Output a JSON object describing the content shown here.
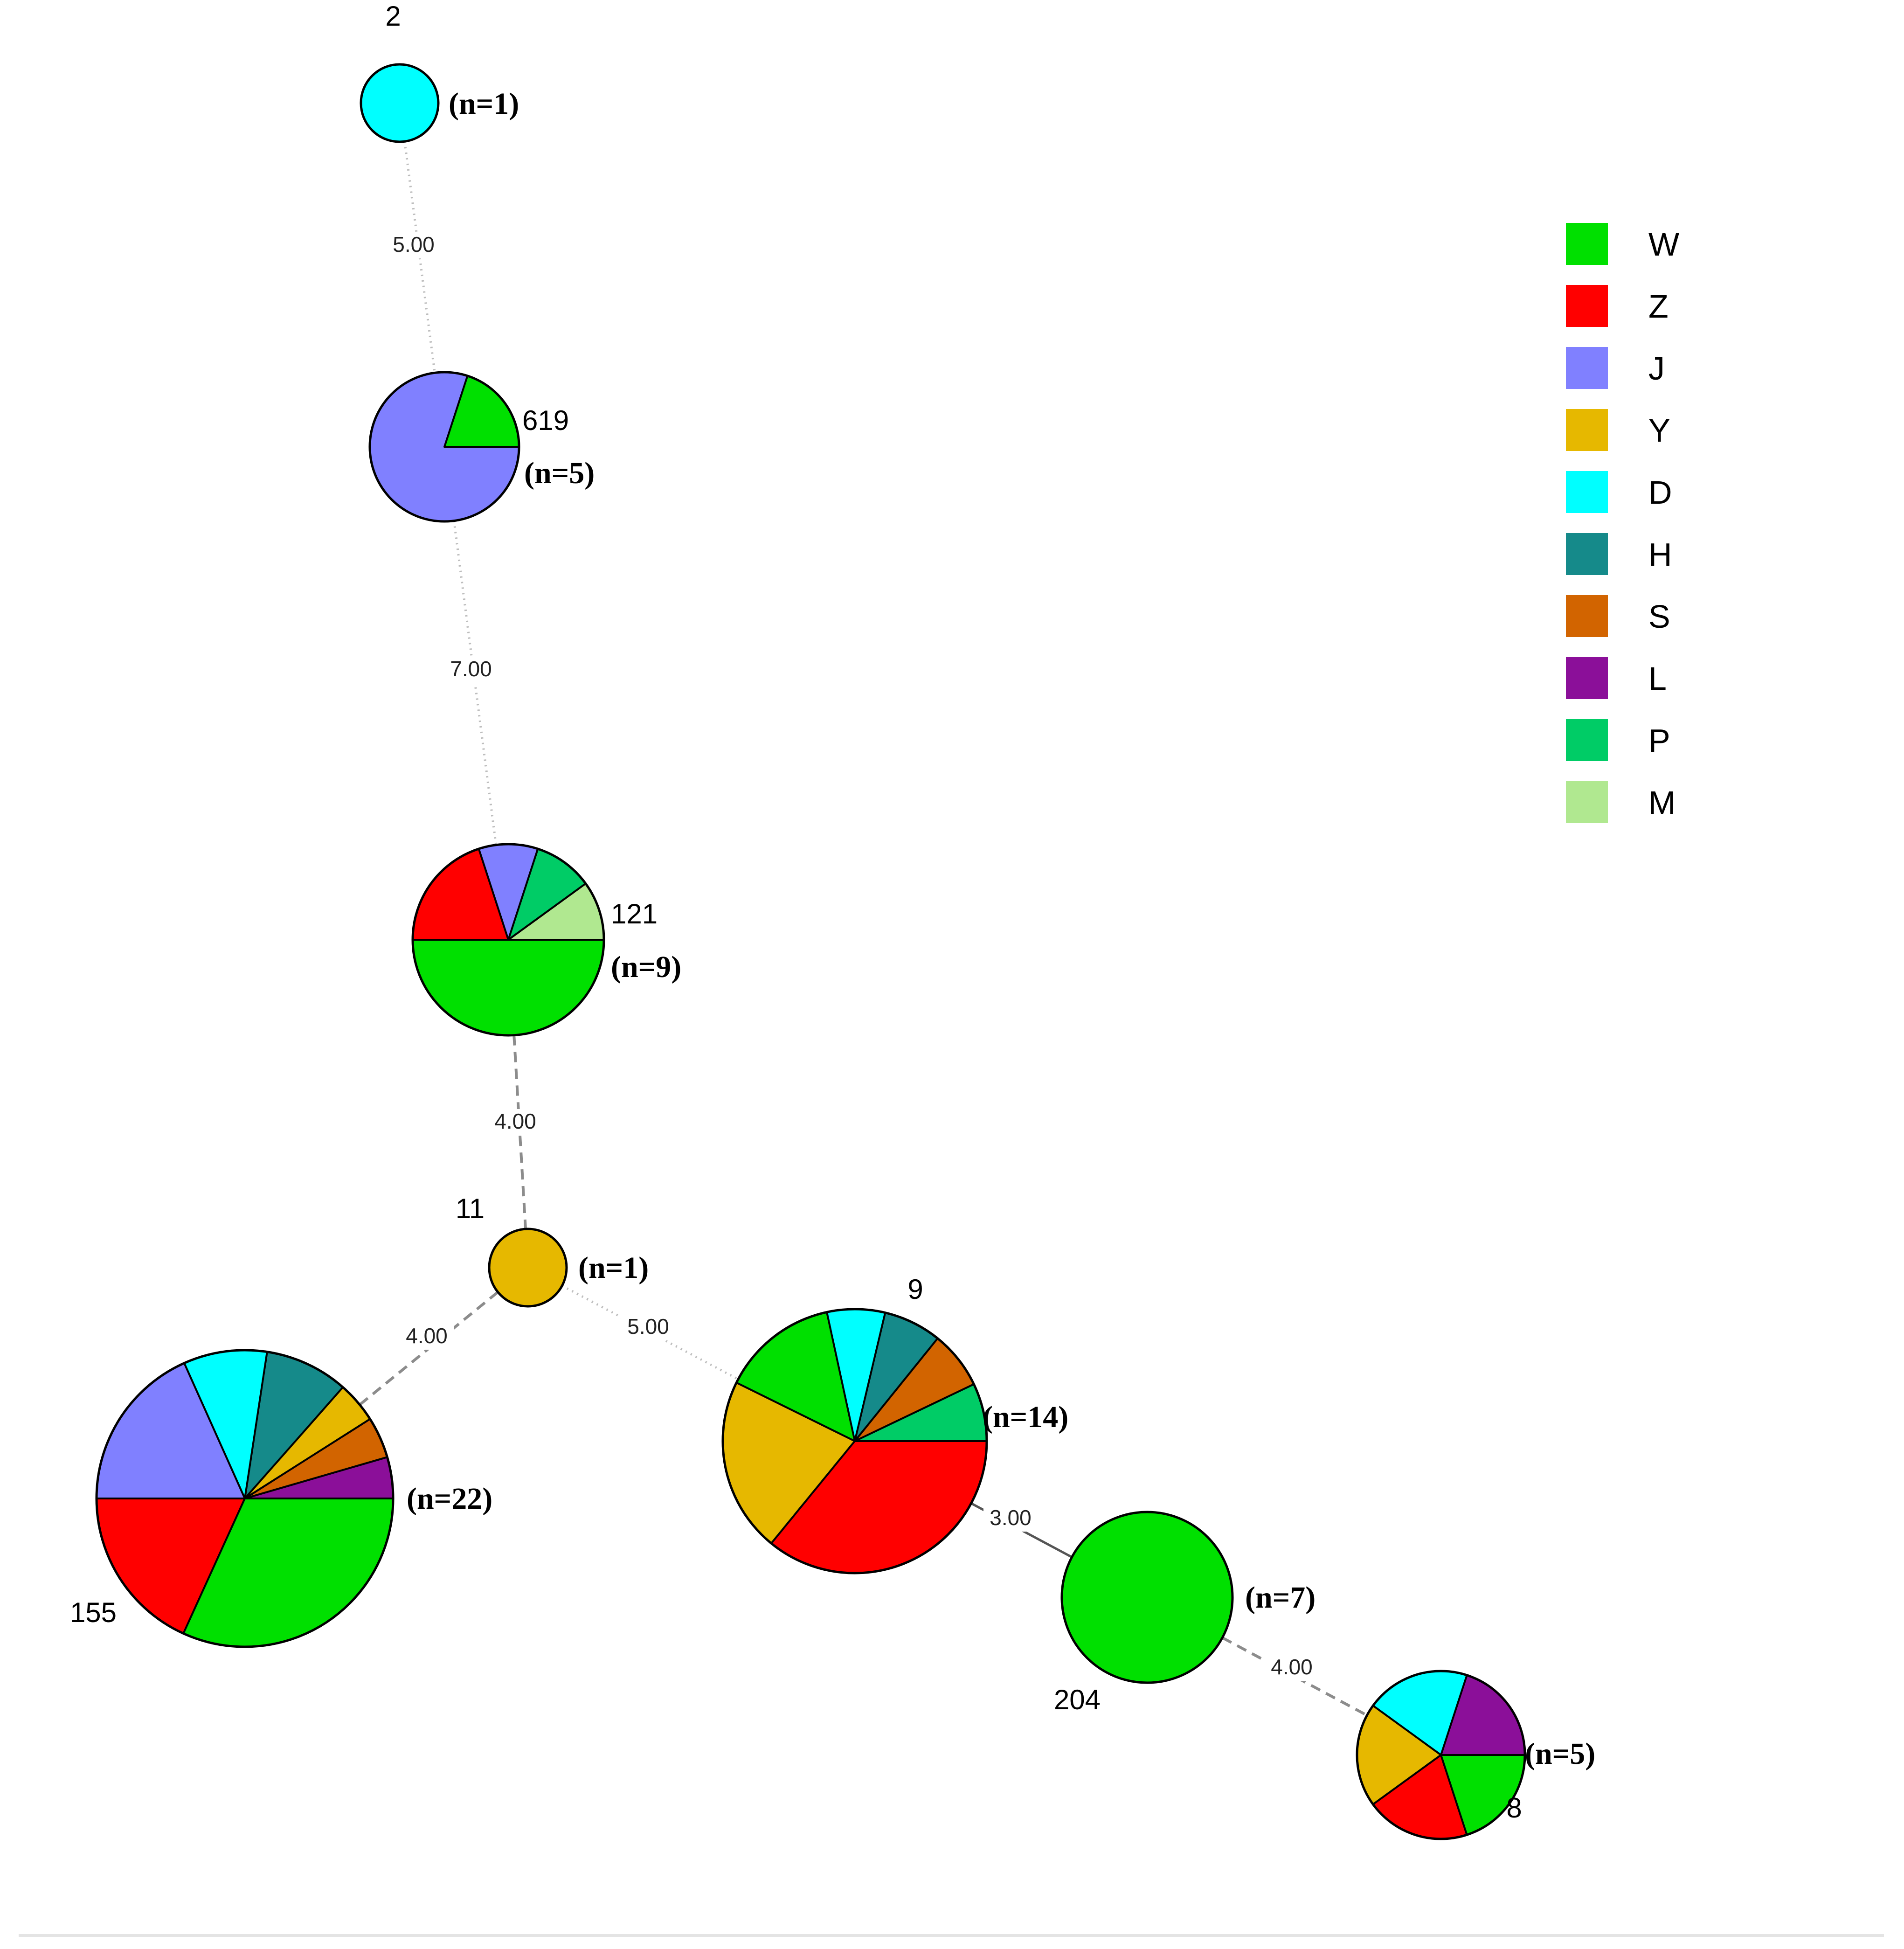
{
  "colors": {
    "W": "#00e000",
    "Z": "#ff0000",
    "J": "#8080ff",
    "Y": "#e6b800",
    "D": "#00ffff",
    "H": "#158a8a",
    "S": "#d26400",
    "L": "#8b0f99",
    "P": "#00cc66",
    "M": "#b0e890"
  },
  "legend": [
    {
      "key": "W",
      "label": "W"
    },
    {
      "key": "Z",
      "label": "Z"
    },
    {
      "key": "J",
      "label": "J"
    },
    {
      "key": "Y",
      "label": "Y"
    },
    {
      "key": "D",
      "label": "D"
    },
    {
      "key": "H",
      "label": "H"
    },
    {
      "key": "S",
      "label": "S"
    },
    {
      "key": "L",
      "label": "L"
    },
    {
      "key": "P",
      "label": "P"
    },
    {
      "key": "M",
      "label": "M"
    }
  ],
  "nodes": [
    {
      "id": "st2",
      "st_label": "2",
      "n_label": "(n=1)",
      "n": 1,
      "composition": [
        {
          "key": "D",
          "share": 1.0
        }
      ]
    },
    {
      "id": "st619",
      "st_label": "619",
      "n_label": "(n=5)",
      "n": 5,
      "composition": [
        {
          "key": "W",
          "share": 0.2
        },
        {
          "key": "J",
          "share": 0.8
        }
      ]
    },
    {
      "id": "st121",
      "st_label": "121",
      "n_label": "(n=9)",
      "n": 9,
      "composition": [
        {
          "key": "M",
          "share": 0.1
        },
        {
          "key": "P",
          "share": 0.1
        },
        {
          "key": "J",
          "share": 0.1
        },
        {
          "key": "Z",
          "share": 0.2
        },
        {
          "key": "W",
          "share": 0.5
        }
      ]
    },
    {
      "id": "st11",
      "st_label": "11",
      "n_label": "(n=1)",
      "n": 1,
      "composition": [
        {
          "key": "Y",
          "share": 1.0
        }
      ]
    },
    {
      "id": "st155",
      "st_label": "155",
      "n_label": "(n=22)",
      "n": 22,
      "composition": [
        {
          "key": "L",
          "share": 0.045
        },
        {
          "key": "S",
          "share": 0.045
        },
        {
          "key": "Y",
          "share": 0.045
        },
        {
          "key": "H",
          "share": 0.091
        },
        {
          "key": "D",
          "share": 0.091
        },
        {
          "key": "J",
          "share": 0.183
        },
        {
          "key": "Z",
          "share": 0.182
        },
        {
          "key": "W",
          "share": 0.318
        }
      ]
    },
    {
      "id": "st9",
      "st_label": "9",
      "n_label": "(n=14)",
      "n": 14,
      "composition": [
        {
          "key": "P",
          "share": 0.071
        },
        {
          "key": "S",
          "share": 0.071
        },
        {
          "key": "H",
          "share": 0.071
        },
        {
          "key": "D",
          "share": 0.071
        },
        {
          "key": "W",
          "share": 0.143
        },
        {
          "key": "Y",
          "share": 0.214
        },
        {
          "key": "Z",
          "share": 0.359
        }
      ]
    },
    {
      "id": "st204",
      "st_label": "204",
      "n_label": "(n=7)",
      "n": 7,
      "composition": [
        {
          "key": "W",
          "share": 1.0
        }
      ]
    },
    {
      "id": "st8",
      "st_label": "8",
      "n_label": "(n=5)",
      "n": 5,
      "composition": [
        {
          "key": "L",
          "share": 0.2
        },
        {
          "key": "D",
          "share": 0.2
        },
        {
          "key": "Y",
          "share": 0.2
        },
        {
          "key": "Z",
          "share": 0.2
        },
        {
          "key": "W",
          "share": 0.2
        }
      ]
    }
  ],
  "edges": [
    {
      "from": "st2",
      "to": "st619",
      "label": "5.00",
      "style": "dotted"
    },
    {
      "from": "st619",
      "to": "st121",
      "label": "7.00",
      "style": "dotted"
    },
    {
      "from": "st121",
      "to": "st11",
      "label": "4.00",
      "style": "dashed"
    },
    {
      "from": "st11",
      "to": "st155",
      "label": "4.00",
      "style": "dashed"
    },
    {
      "from": "st11",
      "to": "st9",
      "label": "5.00",
      "style": "dotted"
    },
    {
      "from": "st9",
      "to": "st204",
      "label": "3.00",
      "style": "solid"
    },
    {
      "from": "st204",
      "to": "st8",
      "label": "4.00",
      "style": "dashed"
    }
  ]
}
